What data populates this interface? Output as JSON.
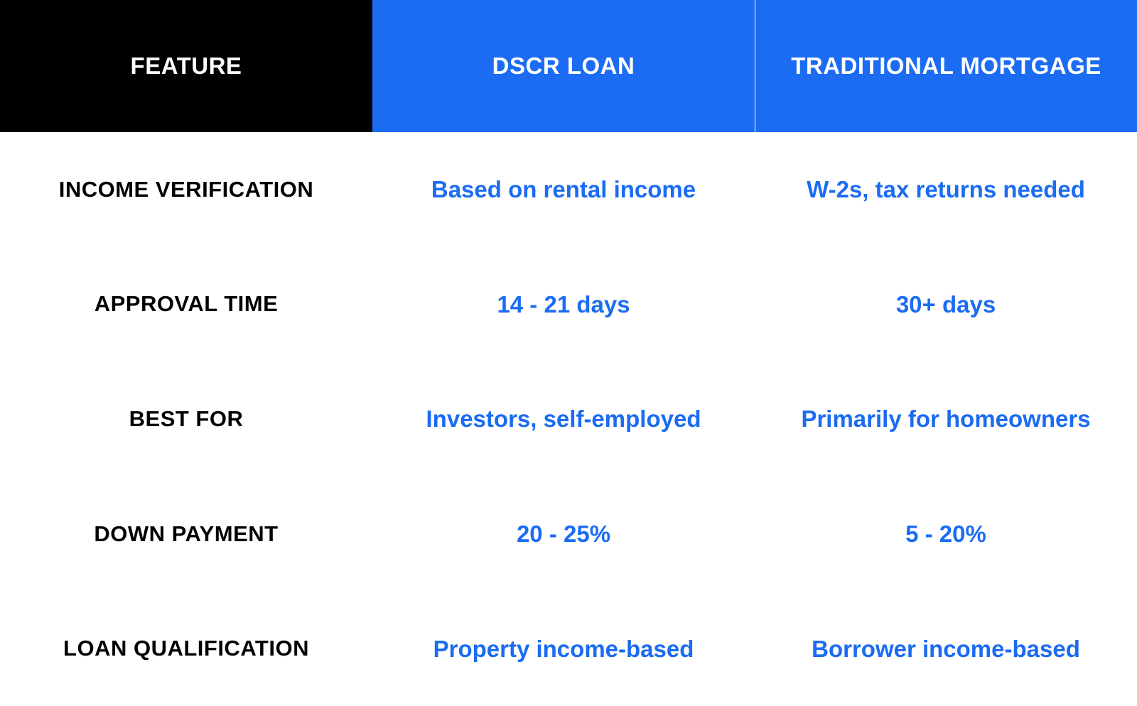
{
  "type": "table",
  "background_color": "#ffffff",
  "grid": {
    "cols": [
      524,
      538,
      538
    ],
    "header_row_height": 186,
    "body_row_height": 161.6
  },
  "colors": {
    "header_feature_bg": "#000000",
    "header_col_bg": "#1b6cf2",
    "header_text": "#ffffff",
    "feature_label_text": "#000000",
    "value_text": "#1b6cf2",
    "header_divider": "#ffffff"
  },
  "typography": {
    "header_fontsize": 33,
    "header_fontweight": 800,
    "feature_label_fontsize": 31,
    "feature_label_fontweight": 800,
    "value_fontsize": 33,
    "value_fontweight": 700,
    "uppercase_headers": true,
    "uppercase_feature_labels": true
  },
  "columns": [
    "FEATURE",
    "DSCR LOAN",
    "TRADITIONAL MORTGAGE"
  ],
  "rows": [
    {
      "feature": "INCOME VERIFICATION",
      "dscr": "Based on rental income",
      "trad": "W-2s, tax returns needed"
    },
    {
      "feature": "APPROVAL TIME",
      "dscr": "14 - 21 days",
      "trad": "30+ days"
    },
    {
      "feature": "BEST FOR",
      "dscr": "Investors, self-employed",
      "trad": "Primarily for homeowners"
    },
    {
      "feature": "DOWN PAYMENT",
      "dscr": "20 - 25%",
      "trad": "5 - 20%"
    },
    {
      "feature": "LOAN QUALIFICATION",
      "dscr": "Property income-based",
      "trad": "Borrower income-based"
    }
  ]
}
